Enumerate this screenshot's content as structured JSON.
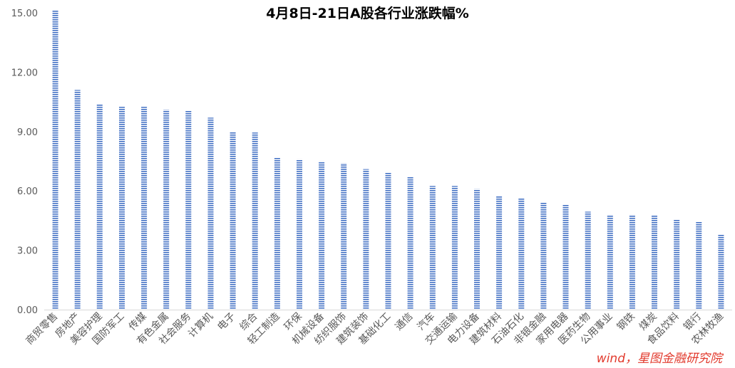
{
  "chart_data": {
    "type": "bar",
    "title": "4月8日-21日A股各行业涨跌幅%",
    "xlabel": "",
    "ylabel": "",
    "ylim": [
      0,
      15
    ],
    "yticks": [
      "0.00",
      "3.00",
      "6.00",
      "9.00",
      "12.00",
      "15.00"
    ],
    "grid": false,
    "legend": "none",
    "bar_color": "#4472C4",
    "categories": [
      "商贸零售",
      "房地产",
      "美容护理",
      "国防军工",
      "传媒",
      "有色金属",
      "社会服务",
      "计算机",
      "电子",
      "综合",
      "轻工制造",
      "环保",
      "机械设备",
      "纺织服饰",
      "建筑装饰",
      "基础化工",
      "通信",
      "汽车",
      "交通运输",
      "电力设备",
      "建筑材料",
      "石油石化",
      "非银金融",
      "家用电器",
      "医药生物",
      "公用事业",
      "钢铁",
      "煤炭",
      "食品饮料",
      "银行",
      "农林牧渔"
    ],
    "values": [
      15.15,
      11.1,
      10.4,
      10.25,
      10.25,
      10.1,
      10.05,
      9.7,
      9.0,
      8.95,
      7.7,
      7.6,
      7.5,
      7.4,
      7.1,
      6.95,
      6.7,
      6.25,
      6.25,
      6.1,
      5.75,
      5.65,
      5.4,
      5.3,
      4.95,
      4.8,
      4.8,
      4.75,
      4.55,
      4.45,
      3.8
    ]
  },
  "source_note": "wind，星图金融研究院"
}
